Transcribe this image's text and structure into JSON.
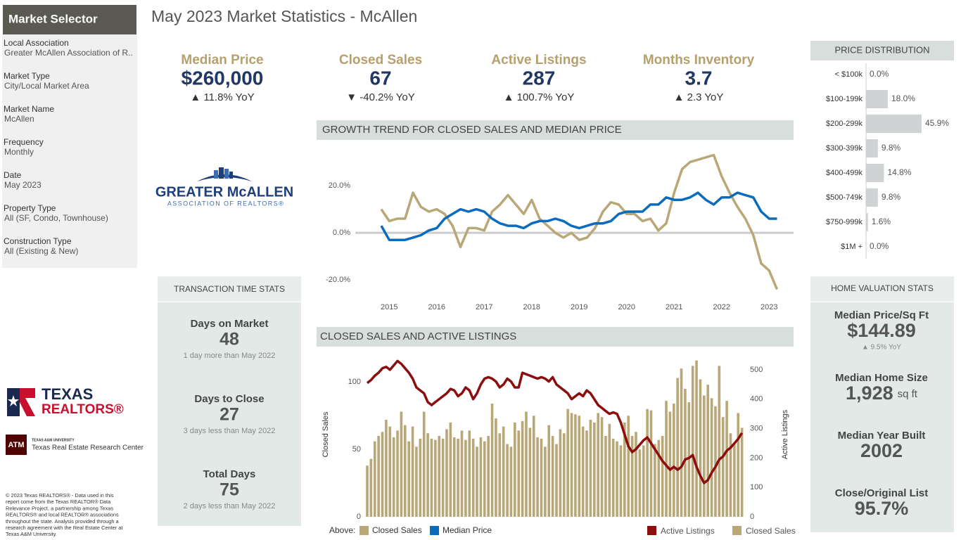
{
  "sidebar": {
    "title": "Market Selector",
    "filters": [
      {
        "label": "Local Association",
        "value": "Greater McAllen Association of R.."
      },
      {
        "label": "Market Type",
        "value": "City/Local Market Area"
      },
      {
        "label": "Market Name",
        "value": "McAllen"
      },
      {
        "label": "Frequency",
        "value": "Monthly"
      },
      {
        "label": "Date",
        "value": "May 2023"
      },
      {
        "label": "Property Type",
        "value": "All (SF, Condo, Townhouse)"
      },
      {
        "label": "Construction Type",
        "value": "All (Existing & New)"
      }
    ]
  },
  "header": {
    "title": "May 2023 Market Statistics - McAllen"
  },
  "kpis": [
    {
      "label": "Median Price",
      "value": "$260,000",
      "change": "▲ 11.8% YoY"
    },
    {
      "label": "Closed Sales",
      "value": "67",
      "change": "▼ -40.2% YoY"
    },
    {
      "label": "Active Listings",
      "value": "287",
      "change": "▲ 100.7% YoY"
    },
    {
      "label": "Months Inventory",
      "value": "3.7",
      "change": "▲ 2.3 YoY"
    }
  ],
  "chart_data": [
    {
      "type": "line",
      "title": "GROWTH TREND FOR CLOSED SALES AND MEDIAN PRICE",
      "legend_title": "Above:",
      "categories": [
        null,
        "2015",
        null,
        null,
        null,
        null,
        null,
        "2016",
        null,
        null,
        null,
        null,
        null,
        "2017",
        null,
        null,
        null,
        null,
        null,
        "2018",
        null,
        null,
        null,
        null,
        null,
        "2019",
        null,
        null,
        null,
        null,
        null,
        "2020",
        null,
        null,
        null,
        null,
        null,
        "2021",
        null,
        null,
        null,
        null,
        null,
        "2022",
        null,
        null,
        null,
        null,
        null,
        "2023",
        null
      ],
      "series": [
        {
          "name": "Closed Sales",
          "color": "#b9a777",
          "values": [
            10,
            5,
            6,
            6,
            17,
            11,
            9,
            10,
            8,
            3,
            -6,
            2,
            2,
            1,
            9,
            12,
            16,
            12,
            8,
            14,
            6,
            3,
            0,
            -2,
            0,
            -3,
            -2,
            2,
            9,
            13,
            12,
            8,
            8,
            5,
            6,
            1,
            4,
            17,
            27,
            30,
            31,
            32,
            33,
            24,
            17,
            11,
            6,
            -1,
            -13,
            -16,
            -24
          ]
        },
        {
          "name": "Median Price",
          "color": "#0b6bbd",
          "values": [
            3,
            -3,
            -3,
            -3,
            -2,
            -1,
            1,
            2,
            6,
            8,
            10,
            9,
            10,
            9,
            6,
            4,
            3,
            3,
            2,
            4,
            5,
            5,
            6,
            5,
            3,
            2,
            3,
            4,
            4,
            5,
            8,
            9,
            9,
            9,
            12,
            12,
            15,
            14,
            14,
            15,
            17,
            14,
            12,
            15,
            15,
            17,
            16,
            15,
            9,
            6,
            6
          ]
        }
      ],
      "ylim": [
        -25,
        40
      ],
      "yticks": [
        {
          "value": 20,
          "label": "20.0%"
        },
        {
          "value": 0,
          "label": "0.0%"
        },
        {
          "value": -20,
          "label": "-20.0%"
        }
      ],
      "zero_line": true
    },
    {
      "type": "combo",
      "title": "CLOSED SALES AND ACTIVE LISTINGS",
      "y_label": "Closed Sales",
      "y2_label": "Active Listings",
      "series": [
        {
          "name": "Active Listings",
          "color": "#8b0d0d",
          "kind": "line",
          "axis": "y2",
          "values": [
            455,
            465,
            480,
            490,
            505,
            510,
            500,
            515,
            530,
            520,
            505,
            490,
            470,
            440,
            430,
            420,
            390,
            380,
            390,
            400,
            410,
            420,
            435,
            430,
            410,
            420,
            440,
            430,
            400,
            420,
            450,
            470,
            475,
            470,
            460,
            440,
            450,
            470,
            460,
            440,
            440,
            490,
            485,
            480,
            475,
            470,
            475,
            470,
            460,
            475,
            450,
            440,
            430,
            420,
            400,
            410,
            420,
            410,
            430,
            420,
            400,
            380,
            370,
            360,
            350,
            355,
            350,
            320,
            280,
            240,
            220,
            230,
            245,
            260,
            270,
            250,
            230,
            210,
            190,
            175,
            160,
            170,
            160,
            170,
            195,
            200,
            210,
            170,
            140,
            115,
            125,
            150,
            170,
            195,
            205,
            225,
            235,
            250,
            265,
            285
          ]
        },
        {
          "name": "Closed Sales",
          "color": "#b9a777",
          "kind": "bar",
          "values": [
            38,
            43,
            56,
            60,
            63,
            72,
            67,
            59,
            64,
            78,
            68,
            56,
            67,
            52,
            58,
            78,
            62,
            58,
            57,
            60,
            58,
            65,
            70,
            59,
            58,
            64,
            57,
            64,
            58,
            52,
            59,
            56,
            60,
            84,
            73,
            62,
            67,
            54,
            52,
            70,
            64,
            71,
            78,
            66,
            75,
            59,
            58,
            52,
            68,
            60,
            54,
            65,
            62,
            80,
            77,
            76,
            75,
            67,
            64,
            72,
            70,
            77,
            74,
            60,
            69,
            58,
            56,
            53,
            70,
            75,
            60,
            63,
            50,
            53,
            80,
            79,
            54,
            57,
            60,
            86,
            78,
            84,
            103,
            110,
            95,
            85,
            112,
            116,
            102,
            90,
            98,
            88,
            82,
            112,
            74,
            86,
            62,
            55,
            77,
            66
          ]
        }
      ],
      "ylim": [
        0,
        120
      ],
      "yticks": [
        0,
        50,
        100
      ],
      "y2lim": [
        0,
        550
      ],
      "y2ticks": [
        0,
        100,
        200,
        300,
        400,
        500
      ]
    },
    {
      "type": "hbar",
      "title": "PRICE DISTRIBUTION",
      "color": "#d0d3d4",
      "categories": [
        "< $100k",
        "$100-199k",
        "$200-299k",
        "$300-399k",
        "$400-499k",
        "$500-749k",
        "$750-999k",
        "$1M +"
      ],
      "values": [
        0.0,
        18.0,
        45.9,
        9.8,
        14.8,
        9.8,
        1.6,
        0.0
      ],
      "value_labels": [
        "0.0%",
        "18.0%",
        "45.9%",
        "9.8%",
        "14.8%",
        "9.8%",
        "1.6%",
        "0.0%"
      ],
      "xlim": [
        0,
        50
      ]
    }
  ],
  "transaction_stats": {
    "title": "TRANSACTION TIME STATS",
    "items": [
      {
        "label": "Days on Market",
        "value": "48",
        "note": "1 day more than May 2022"
      },
      {
        "label": "Days to Close",
        "value": "27",
        "note": "3 days less than May 2022"
      },
      {
        "label": "Total Days",
        "value": "75",
        "note": "2 days less than May 2022"
      }
    ]
  },
  "home_valuation": {
    "title": "HOME VALUATION STATS",
    "items": [
      {
        "label": "Median Price/Sq Ft",
        "value": "$144.89",
        "note": "▲ 9.5% YoY"
      },
      {
        "label": "Median Home Size",
        "value": "1,928",
        "unit": "sq ft"
      },
      {
        "label": "Median Year Built",
        "value": "2002"
      },
      {
        "label": "Close/Original List",
        "value": "95.7%"
      }
    ]
  },
  "logos": {
    "association": {
      "name": "GREATER McALLEN",
      "sub": "ASSOCIATION OF REALTORS®"
    },
    "texas_realtors": {
      "line1": "TEXAS",
      "line2": "REALTORS®"
    },
    "tamu": {
      "mark": "ATM",
      "university": "TEXAS A&M UNIVERSITY",
      "center": "Texas Real Estate Research Center"
    }
  },
  "footer": {
    "lines": [
      "© 2023 Texas REALTORS® - Data used in this",
      "report come from the Texas REALTOR® Data",
      "Relevance Project, a partnership among Texas",
      "REALTORS® and local REALTOR® associations",
      "throughout the state. Analysis provided through a",
      "research agreement with the Real Estate Center at",
      "Texas A&M University."
    ]
  }
}
